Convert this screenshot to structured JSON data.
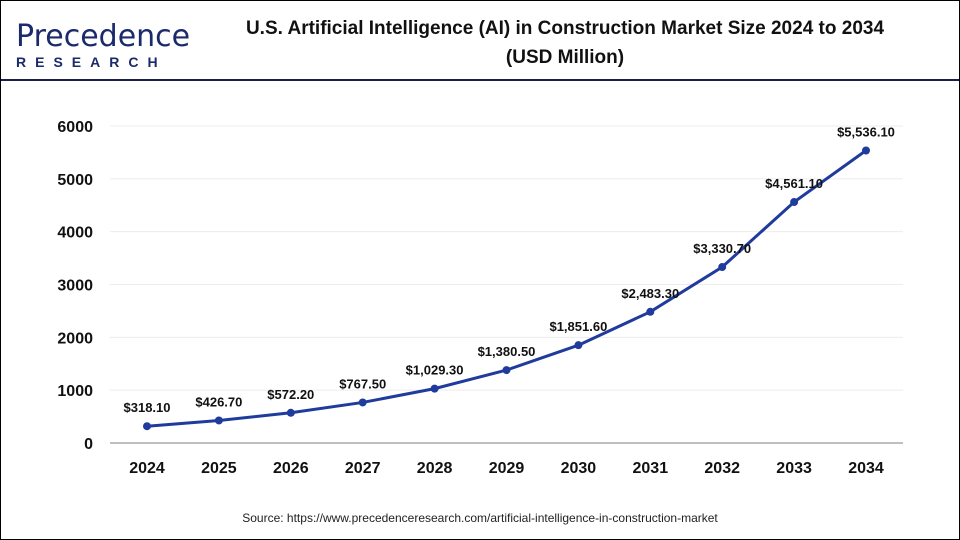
{
  "logo": {
    "line1": "Precedence",
    "line2": "RESEARCH"
  },
  "title_line1": "U.S. Artificial Intelligence (AI) in Construction Market Size 2024 to 2034",
  "title_line2": "(USD Million)",
  "source": "Source: https://www.precedenceresearch.com/artificial-intelligence-in-construction-market",
  "chart_data": {
    "type": "line",
    "title": "U.S. Artificial Intelligence (AI) in Construction Market Size 2024 to 2034 (USD Million)",
    "xlabel": "",
    "ylabel": "",
    "categories": [
      "2024",
      "2025",
      "2026",
      "2027",
      "2028",
      "2029",
      "2030",
      "2031",
      "2032",
      "2033",
      "2034"
    ],
    "values": [
      318.1,
      426.7,
      572.2,
      767.5,
      1029.3,
      1380.5,
      1851.6,
      2483.3,
      3330.7,
      4561.1,
      5536.1
    ],
    "labels": [
      "$318.10",
      "$426.70",
      "$572.20",
      "$767.50",
      "$1,029.30",
      "$1,380.50",
      "$1,851.60",
      "$2,483.30",
      "$3,330.70",
      "$4,561.10",
      "$5,536.10"
    ],
    "ylim": [
      0,
      6000
    ],
    "yticks": [
      "0",
      "1000",
      "2000",
      "3000",
      "4000",
      "5000",
      "6000"
    ],
    "grid": true,
    "color": "#1f3c9c"
  }
}
